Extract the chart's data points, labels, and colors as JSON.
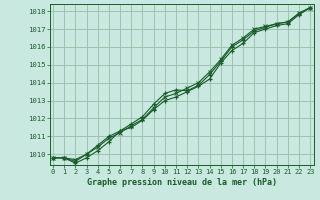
{
  "background_color": "#c8e8e0",
  "plot_bg_color": "#c8e8e0",
  "grid_color": "#99bbaa",
  "line_color": "#1a5c2a",
  "title": "Graphe pression niveau de la mer (hPa)",
  "title_color": "#1a5c2a",
  "x_ticks": [
    0,
    1,
    2,
    3,
    4,
    5,
    6,
    7,
    8,
    9,
    10,
    11,
    12,
    13,
    14,
    15,
    16,
    17,
    18,
    19,
    20,
    21,
    22,
    23
  ],
  "y_ticks": [
    1010,
    1011,
    1012,
    1013,
    1014,
    1015,
    1016,
    1017,
    1018
  ],
  "ylim": [
    1009.4,
    1018.4
  ],
  "xlim": [
    -0.3,
    23.3
  ],
  "line1": [
    1009.8,
    1009.8,
    1009.5,
    1009.8,
    1010.2,
    1010.7,
    1011.3,
    1011.5,
    1011.9,
    1012.5,
    1013.0,
    1013.2,
    1013.5,
    1013.8,
    1014.2,
    1015.1,
    1015.8,
    1016.2,
    1016.8,
    1017.0,
    1017.2,
    1017.3,
    1017.8,
    1018.2
  ],
  "line2": [
    1009.8,
    1009.8,
    1009.6,
    1010.0,
    1010.5,
    1011.0,
    1011.3,
    1011.7,
    1012.1,
    1012.8,
    1013.4,
    1013.6,
    1013.55,
    1013.85,
    1014.45,
    1015.2,
    1016.0,
    1016.4,
    1016.9,
    1017.1,
    1017.3,
    1017.4,
    1017.85,
    1018.2
  ],
  "line3": [
    1009.8,
    1009.8,
    1009.7,
    1010.0,
    1010.4,
    1010.9,
    1011.2,
    1011.6,
    1011.95,
    1012.6,
    1013.2,
    1013.4,
    1013.7,
    1014.0,
    1014.6,
    1015.3,
    1016.1,
    1016.5,
    1017.0,
    1017.15,
    1017.3,
    1017.4,
    1017.9,
    1018.2
  ],
  "font_family": "monospace"
}
